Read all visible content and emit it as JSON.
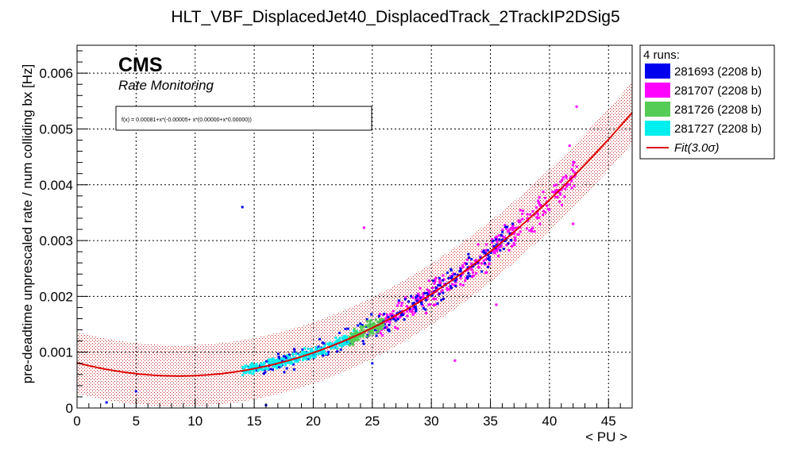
{
  "chart_data": {
    "type": "scatter",
    "title": "HLT_VBF_DisplacedJet40_DisplacedTrack_2TrackIP2DSig5",
    "xlabel": "< PU >",
    "ylabel": "pre-deadtime unprescaled rate / num colliding bx [Hz]",
    "xlim": [
      0,
      47
    ],
    "ylim": [
      0,
      0.0065
    ],
    "x_ticks": [
      0,
      5,
      10,
      15,
      20,
      25,
      30,
      35,
      40,
      45
    ],
    "y_ticks": [
      0,
      0.001,
      0.002,
      0.003,
      0.004,
      0.005,
      0.006
    ],
    "x_tick_labels": [
      "0",
      "5",
      "10",
      "15",
      "20",
      "25",
      "30",
      "35",
      "40",
      "45"
    ],
    "y_tick_labels": [
      "0",
      "0.001",
      "0.002",
      "0.003",
      "0.004",
      "0.005",
      "0.006"
    ],
    "grid": true,
    "cms_label": "CMS",
    "cms_sublabel": "Rate Monitoring",
    "fit_formula": "f(x) = 0.00081+x*(-0.00005+ x*(0.00000+x*0.00000))",
    "fit": {
      "name": "Fit(3.0σ)",
      "band_sigma": 3.0,
      "color": "#dd0000",
      "band_halfwidth": 0.00055
    },
    "legend_title": "4 runs:",
    "legend_position": "outside-right",
    "series": [
      {
        "name": "281693 (2208 b)",
        "color": "#0000ee",
        "x_range": [
          14.5,
          37
        ],
        "count": 260,
        "spread": 0.00018,
        "outliers": [
          [
            14,
            0.0036
          ],
          [
            16,
            5e-05
          ],
          [
            5,
            0.0003
          ],
          [
            2.5,
            0.0001
          ],
          [
            25,
            0.0008
          ]
        ]
      },
      {
        "name": "281707 (2208 b)",
        "color": "#ff00ff",
        "x_range": [
          25.5,
          42.5
        ],
        "count": 320,
        "spread": 0.0002,
        "outliers": [
          [
            24.3,
            0.00323
          ],
          [
            42.3,
            0.0054
          ],
          [
            41.7,
            0.0047
          ],
          [
            42,
            0.0033
          ],
          [
            32,
            0.00085
          ],
          [
            35.5,
            0.00185
          ]
        ]
      },
      {
        "name": "281726 (2208 b)",
        "color": "#55cc55",
        "x_range": [
          23,
          26
        ],
        "count": 130,
        "spread": 0.00012,
        "outliers": []
      },
      {
        "name": "281727 (2208 b)",
        "color": "#00eeee",
        "x_range": [
          14,
          24
        ],
        "count": 320,
        "spread": 0.0001,
        "outliers": []
      }
    ]
  }
}
